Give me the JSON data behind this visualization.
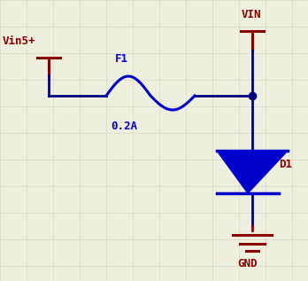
{
  "background_color": "#efefdf",
  "grid_color": "#d8d8c0",
  "wire_color": "#000080",
  "label_color": "#8b0000",
  "fuse_color": "#0000cc",
  "diode_color": "#0000cc",
  "dot_color": "#000080",
  "vin5_label": "Vin5+",
  "vin_label": "VIN",
  "gnd_label": "GND",
  "f1_label": "F1",
  "f1_value": "0.2A",
  "d1_label": "D1",
  "figsize": [
    3.48,
    3.17
  ],
  "dpi": 100
}
